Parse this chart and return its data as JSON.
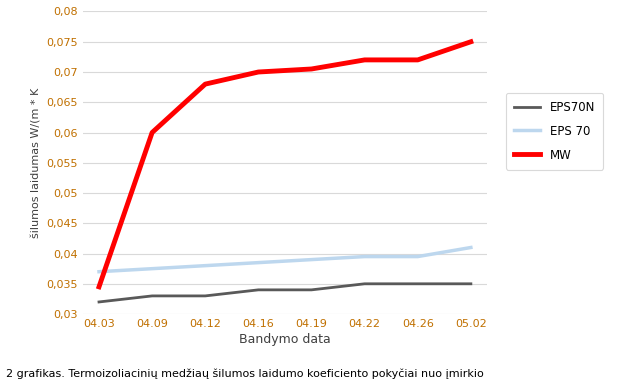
{
  "x_labels": [
    "04.03",
    "04.09",
    "04.12",
    "04.16",
    "04.19",
    "04.22",
    "04.26",
    "05.02"
  ],
  "series": {
    "EPS70N": [
      0.032,
      0.033,
      0.033,
      0.034,
      0.034,
      0.035,
      0.035,
      0.035
    ],
    "EPS 70": [
      0.037,
      0.0375,
      0.038,
      0.0385,
      0.039,
      0.0395,
      0.0395,
      0.041
    ],
    "MW": [
      0.0345,
      0.06,
      0.068,
      0.07,
      0.0705,
      0.072,
      0.072,
      0.075
    ]
  },
  "colors": {
    "EPS70N": "#595959",
    "EPS 70": "#bdd7ee",
    "MW": "#ff0000"
  },
  "ylim": [
    0.03,
    0.08
  ],
  "yticks": [
    0.03,
    0.035,
    0.04,
    0.045,
    0.05,
    0.055,
    0.06,
    0.065,
    0.07,
    0.075,
    0.08
  ],
  "ytick_labels": [
    "0,03",
    "0,035",
    "0,04",
    "0,045",
    "0,05",
    "0,055",
    "0,06",
    "0,065",
    "0,07",
    "0,075",
    "0,08"
  ],
  "xlabel": "Bandymo data",
  "ylabel": "šilumos laidumas W/(m * K",
  "caption": "2 grafikas. Termoizoliacinių medžiaų šilumos laidumo koeficiento pokyčiai nuo įmirkio",
  "background_color": "#ffffff",
  "grid_color": "#d9d9d9",
  "legend_labels": [
    "EPS70N",
    "EPS 70",
    "MW"
  ],
  "tick_color": "#c07000",
  "label_color": "#404040",
  "line_widths": {
    "EPS70N": 2.0,
    "EPS 70": 2.5,
    "MW": 3.5
  }
}
